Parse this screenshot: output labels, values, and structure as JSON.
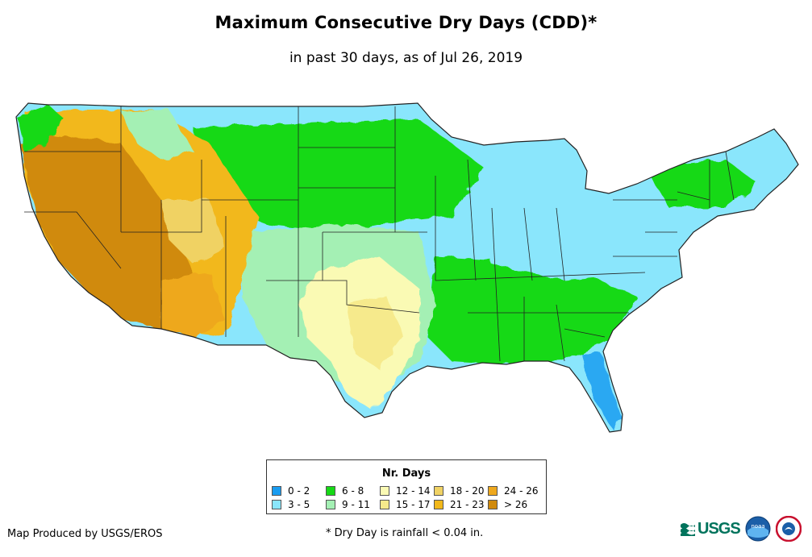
{
  "title": "Maximum Consecutive Dry Days (CDD)*",
  "subtitle": "in past 30 days, as of Jul 26, 2019",
  "map": {
    "region": "Contiguous United States",
    "description_regions": [
      {
        "name": "West coast / Great Basin / Desert Southwest",
        "category": "> 26"
      },
      {
        "name": "Intermountain West",
        "category": "21 - 23"
      },
      {
        "name": "Southern Plains / Texas",
        "category": "12 - 14"
      },
      {
        "name": "Northern Plains / Upper Midwest",
        "category": "6 - 8"
      },
      {
        "name": "Great Lakes / Ohio Valley / Northeast",
        "category": "3 - 5"
      },
      {
        "name": "Southeast",
        "category": "6 - 8"
      },
      {
        "name": "Florida peninsula",
        "category": "0 - 2"
      }
    ]
  },
  "legend": {
    "title": "Nr. Days",
    "items": [
      {
        "label": "0 - 2",
        "color": "#1a9cf0"
      },
      {
        "label": "6 - 8",
        "color": "#16d916"
      },
      {
        "label": "12 - 14",
        "color": "#fafab4"
      },
      {
        "label": "18 - 20",
        "color": "#f0d264"
      },
      {
        "label": "24 - 26",
        "color": "#eea81e"
      },
      {
        "label": "3 - 5",
        "color": "#8ae6fc"
      },
      {
        "label": "9 - 11",
        "color": "#a4f0b4"
      },
      {
        "label": "15 - 17",
        "color": "#f6ea8c"
      },
      {
        "label": "21 - 23",
        "color": "#f2b81a"
      },
      {
        "label": "> 26",
        "color": "#d08a0c"
      }
    ]
  },
  "footer": {
    "produced_by": "Map Produced by USGS/EROS",
    "note": "* Dry Day is rainfall < 0.04 in."
  },
  "logos": {
    "usgs": "USGS",
    "noaa": "noaa"
  }
}
